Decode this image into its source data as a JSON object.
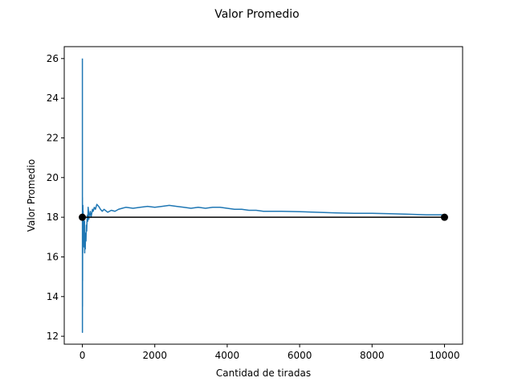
{
  "chart_data": {
    "type": "line",
    "title": "Valor Promedio",
    "xlabel": "Cantidad de tiradas",
    "ylabel": "Valor Promedio",
    "xlim": [
      -500,
      10500
    ],
    "ylim": [
      11.6,
      26.6
    ],
    "xticks": [
      0,
      2000,
      4000,
      6000,
      8000,
      10000
    ],
    "yticks": [
      12,
      14,
      16,
      18,
      20,
      22,
      24,
      26
    ],
    "grid": false,
    "series": [
      {
        "color": "#1f77b4",
        "x": [
          1,
          2,
          3,
          4,
          5,
          6,
          8,
          10,
          12,
          15,
          18,
          22,
          26,
          30,
          35,
          40,
          45,
          50,
          55,
          60,
          65,
          70,
          80,
          90,
          100,
          110,
          120,
          130,
          140,
          150,
          160,
          170,
          180,
          190,
          200,
          220,
          240,
          260,
          280,
          300,
          330,
          360,
          400,
          450,
          500,
          550,
          600,
          700,
          800,
          900,
          1000,
          1100,
          1200,
          1400,
          1600,
          1800,
          2000,
          2200,
          2400,
          2600,
          2800,
          3000,
          3200,
          3400,
          3600,
          3800,
          4000,
          4200,
          4400,
          4600,
          4800,
          5000,
          5500,
          6000,
          6500,
          7000,
          7500,
          8000,
          8500,
          9000,
          9500,
          10000
        ],
        "y": [
          26.0,
          12.2,
          19.0,
          13.5,
          16.0,
          14.8,
          17.5,
          16.2,
          17.9,
          18.6,
          17.4,
          18.3,
          16.8,
          17.9,
          17.1,
          18.1,
          16.5,
          17.6,
          16.9,
          17.8,
          16.2,
          17.0,
          16.4,
          17.2,
          16.8,
          17.6,
          17.3,
          17.9,
          18.1,
          17.8,
          18.5,
          18.3,
          17.9,
          18.2,
          18.1,
          18.3,
          18.0,
          18.2,
          18.4,
          18.3,
          18.5,
          18.4,
          18.65,
          18.55,
          18.4,
          18.3,
          18.4,
          18.25,
          18.35,
          18.3,
          18.4,
          18.45,
          18.5,
          18.45,
          18.5,
          18.55,
          18.5,
          18.55,
          18.6,
          18.55,
          18.5,
          18.45,
          18.5,
          18.45,
          18.5,
          18.5,
          18.45,
          18.4,
          18.4,
          18.35,
          18.35,
          18.3,
          18.3,
          18.28,
          18.25,
          18.22,
          18.2,
          18.2,
          18.18,
          18.15,
          18.12,
          18.12
        ]
      },
      {
        "color": "#000000",
        "x": [
          0,
          10000
        ],
        "y": [
          18.0,
          18.0
        ],
        "markers": true
      }
    ]
  }
}
